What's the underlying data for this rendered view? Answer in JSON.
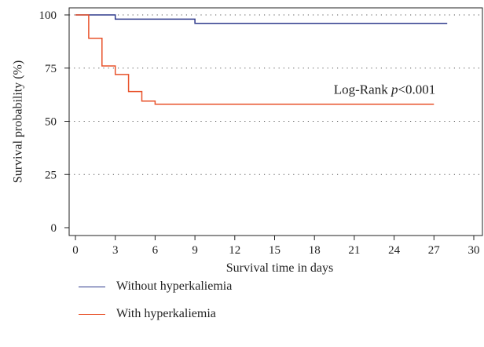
{
  "chart_data": {
    "type": "line",
    "step": true,
    "xlabel": "Survival time in days",
    "ylabel": "Survival probability (%)",
    "xlim": [
      0,
      30
    ],
    "ylim": [
      0,
      100
    ],
    "xticks": [
      0,
      3,
      6,
      9,
      12,
      15,
      18,
      21,
      24,
      27,
      30
    ],
    "yticks": [
      0,
      25,
      50,
      75,
      100
    ],
    "grid": "horizontal-dotted",
    "annotation": {
      "prefix": "Log-Rank ",
      "italic": "p",
      "suffix": "<0.001",
      "x": 27,
      "y": 63
    },
    "series": [
      {
        "name": "Without hyperkaliemia",
        "color": "#2e3a8c",
        "points": [
          [
            0,
            100
          ],
          [
            3,
            100
          ],
          [
            3,
            98
          ],
          [
            9,
            98
          ],
          [
            9,
            96
          ],
          [
            28,
            96
          ]
        ]
      },
      {
        "name": "With hyperkaliemia",
        "color": "#e8522a",
        "points": [
          [
            0,
            100
          ],
          [
            1,
            100
          ],
          [
            1,
            89
          ],
          [
            2,
            89
          ],
          [
            2,
            76
          ],
          [
            3,
            76
          ],
          [
            3,
            72
          ],
          [
            4,
            72
          ],
          [
            4,
            64
          ],
          [
            5,
            64
          ],
          [
            5,
            59.5
          ],
          [
            6,
            59.5
          ],
          [
            6,
            58
          ],
          [
            27,
            58
          ]
        ]
      }
    ]
  }
}
